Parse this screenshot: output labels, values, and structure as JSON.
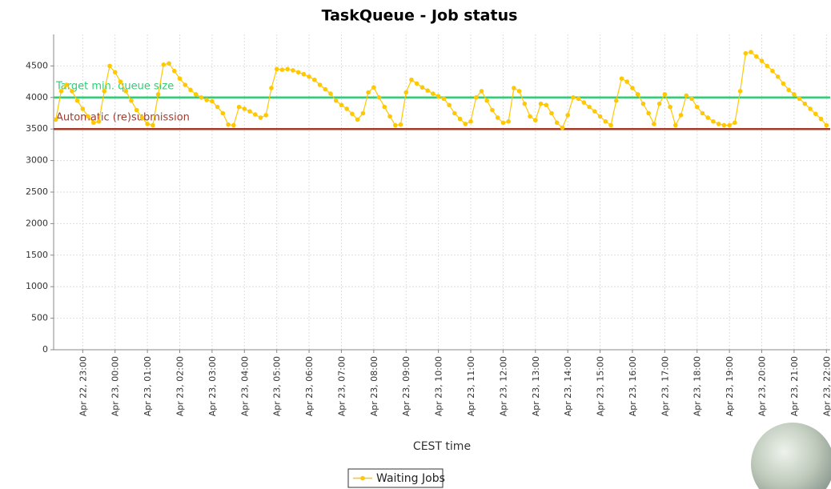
{
  "chart_data": {
    "type": "line",
    "title": "TaskQueue - Job status",
    "xlabel": "CEST time",
    "x": [
      "Apr 22, 22:10",
      "Apr 22, 22:20",
      "Apr 22, 22:30",
      "Apr 22, 22:40",
      "Apr 22, 22:50",
      "Apr 22, 23:00",
      "Apr 22, 23:10",
      "Apr 22, 23:20",
      "Apr 22, 23:30",
      "Apr 22, 23:40",
      "Apr 22, 23:50",
      "Apr 23, 00:00",
      "Apr 23, 00:10",
      "Apr 23, 00:20",
      "Apr 23, 00:30",
      "Apr 23, 00:40",
      "Apr 23, 00:50",
      "Apr 23, 01:00",
      "Apr 23, 01:10",
      "Apr 23, 01:20",
      "Apr 23, 01:30",
      "Apr 23, 01:40",
      "Apr 23, 01:50",
      "Apr 23, 02:00",
      "Apr 23, 02:10",
      "Apr 23, 02:20",
      "Apr 23, 02:30",
      "Apr 23, 02:40",
      "Apr 23, 02:50",
      "Apr 23, 03:00",
      "Apr 23, 03:10",
      "Apr 23, 03:20",
      "Apr 23, 03:30",
      "Apr 23, 03:40",
      "Apr 23, 03:50",
      "Apr 23, 04:00",
      "Apr 23, 04:10",
      "Apr 23, 04:20",
      "Apr 23, 04:30",
      "Apr 23, 04:40",
      "Apr 23, 04:50",
      "Apr 23, 05:00",
      "Apr 23, 05:10",
      "Apr 23, 05:20",
      "Apr 23, 05:30",
      "Apr 23, 05:40",
      "Apr 23, 05:50",
      "Apr 23, 06:00",
      "Apr 23, 06:10",
      "Apr 23, 06:20",
      "Apr 23, 06:30",
      "Apr 23, 06:40",
      "Apr 23, 06:50",
      "Apr 23, 07:00",
      "Apr 23, 07:10",
      "Apr 23, 07:20",
      "Apr 23, 07:30",
      "Apr 23, 07:40",
      "Apr 23, 07:50",
      "Apr 23, 08:00",
      "Apr 23, 08:10",
      "Apr 23, 08:20",
      "Apr 23, 08:30",
      "Apr 23, 08:40",
      "Apr 23, 08:50",
      "Apr 23, 09:00",
      "Apr 23, 09:10",
      "Apr 23, 09:20",
      "Apr 23, 09:30",
      "Apr 23, 09:40",
      "Apr 23, 09:50",
      "Apr 23, 10:00",
      "Apr 23, 10:10",
      "Apr 23, 10:20",
      "Apr 23, 10:30",
      "Apr 23, 10:40",
      "Apr 23, 10:50",
      "Apr 23, 11:00",
      "Apr 23, 11:10",
      "Apr 23, 11:20",
      "Apr 23, 11:30",
      "Apr 23, 11:40",
      "Apr 23, 11:50",
      "Apr 23, 12:00",
      "Apr 23, 12:10",
      "Apr 23, 12:20",
      "Apr 23, 12:30",
      "Apr 23, 12:40",
      "Apr 23, 12:50",
      "Apr 23, 13:00",
      "Apr 23, 13:10",
      "Apr 23, 13:20",
      "Apr 23, 13:30",
      "Apr 23, 13:40",
      "Apr 23, 13:50",
      "Apr 23, 14:00",
      "Apr 23, 14:10",
      "Apr 23, 14:20",
      "Apr 23, 14:30",
      "Apr 23, 14:40",
      "Apr 23, 14:50",
      "Apr 23, 15:00",
      "Apr 23, 15:10",
      "Apr 23, 15:20",
      "Apr 23, 15:30",
      "Apr 23, 15:40",
      "Apr 23, 15:50",
      "Apr 23, 16:00",
      "Apr 23, 16:10",
      "Apr 23, 16:20",
      "Apr 23, 16:30",
      "Apr 23, 16:40",
      "Apr 23, 16:50",
      "Apr 23, 17:00",
      "Apr 23, 17:10",
      "Apr 23, 17:20",
      "Apr 23, 17:30",
      "Apr 23, 17:40",
      "Apr 23, 17:50",
      "Apr 23, 18:00",
      "Apr 23, 18:10",
      "Apr 23, 18:20",
      "Apr 23, 18:30",
      "Apr 23, 18:40",
      "Apr 23, 18:50",
      "Apr 23, 19:00",
      "Apr 23, 19:10",
      "Apr 23, 19:20",
      "Apr 23, 19:30",
      "Apr 23, 19:40",
      "Apr 23, 19:50",
      "Apr 23, 20:00",
      "Apr 23, 20:10",
      "Apr 23, 20:20",
      "Apr 23, 20:30",
      "Apr 23, 20:40",
      "Apr 23, 20:50",
      "Apr 23, 21:00",
      "Apr 23, 21:10",
      "Apr 23, 21:20",
      "Apr 23, 21:30",
      "Apr 23, 21:40",
      "Apr 23, 21:50",
      "Apr 23, 22:00"
    ],
    "series": [
      {
        "name": "Waiting Jobs",
        "color": "#ffc800",
        "values": [
          3650,
          4100,
          4200,
          4100,
          3950,
          3820,
          3700,
          3600,
          3620,
          4100,
          4500,
          4400,
          4250,
          4100,
          3950,
          3800,
          3680,
          3580,
          3560,
          4050,
          4520,
          4540,
          4420,
          4300,
          4200,
          4120,
          4050,
          4000,
          3960,
          3940,
          3850,
          3750,
          3570,
          3560,
          3850,
          3820,
          3780,
          3730,
          3680,
          3720,
          4150,
          4450,
          4440,
          4450,
          4430,
          4400,
          4370,
          4330,
          4280,
          4200,
          4130,
          4060,
          3950,
          3880,
          3820,
          3740,
          3650,
          3750,
          4080,
          4160,
          4000,
          3850,
          3700,
          3560,
          3570,
          4080,
          4280,
          4220,
          4160,
          4110,
          4060,
          4020,
          3980,
          3880,
          3750,
          3660,
          3580,
          3620,
          4000,
          4100,
          3950,
          3800,
          3680,
          3600,
          3620,
          4150,
          4100,
          3900,
          3700,
          3640,
          3900,
          3880,
          3750,
          3600,
          3520,
          3720,
          4000,
          3980,
          3920,
          3850,
          3780,
          3700,
          3620,
          3560,
          3950,
          4300,
          4250,
          4150,
          4050,
          3900,
          3750,
          3580,
          3900,
          4050,
          3850,
          3560,
          3720,
          4030,
          3980,
          3850,
          3750,
          3680,
          3620,
          3580,
          3560,
          3560,
          3600,
          4100,
          4700,
          4720,
          4650,
          4580,
          4500,
          4420,
          4330,
          4220,
          4120,
          4050,
          3980,
          3900,
          3820,
          3740,
          3660,
          3560
        ]
      }
    ],
    "markers": [
      {
        "value": 4000,
        "label": "Target min. queue size",
        "color": "#33cc77"
      },
      {
        "value": 3500,
        "label": "Automatic (re)submission",
        "color": "#a33a2a"
      }
    ],
    "xlim": [
      "Apr 22, 22:06",
      "Apr 23, 22:07"
    ],
    "xticks": [
      "Apr 22, 23:00",
      "Apr 23, 00:00",
      "Apr 23, 01:00",
      "Apr 23, 02:00",
      "Apr 23, 03:00",
      "Apr 23, 04:00",
      "Apr 23, 05:00",
      "Apr 23, 06:00",
      "Apr 23, 07:00",
      "Apr 23, 08:00",
      "Apr 23, 09:00",
      "Apr 23, 10:00",
      "Apr 23, 11:00",
      "Apr 23, 12:00",
      "Apr 23, 13:00",
      "Apr 23, 14:00",
      "Apr 23, 15:00",
      "Apr 23, 16:00",
      "Apr 23, 17:00",
      "Apr 23, 18:00",
      "Apr 23, 19:00",
      "Apr 23, 20:00",
      "Apr 23, 21:00",
      "Apr 23, 22:00"
    ],
    "ylim": [
      0,
      5000
    ],
    "yticks": [
      0,
      500,
      1000,
      1500,
      2000,
      2500,
      3000,
      3500,
      4000,
      4500
    ],
    "grid": true,
    "legend": "bottom"
  }
}
